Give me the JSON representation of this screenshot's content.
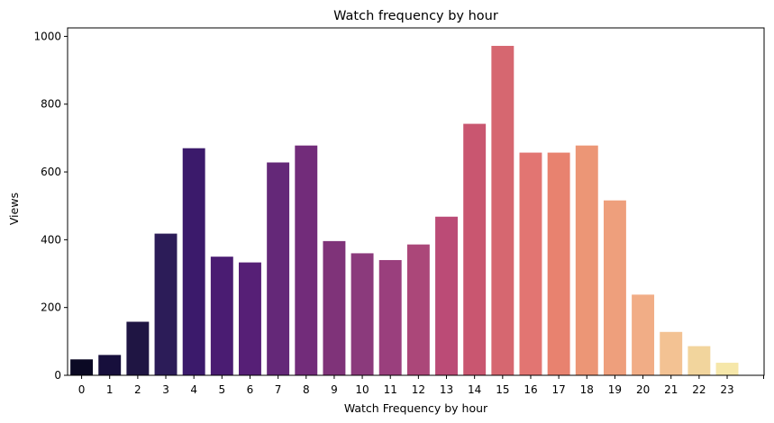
{
  "chart_data": {
    "type": "bar",
    "title": "Watch frequency by hour",
    "xlabel": "Watch Frequency by hour",
    "ylabel": "Views",
    "categories": [
      "0",
      "1",
      "2",
      "3",
      "4",
      "5",
      "6",
      "7",
      "8",
      "9",
      "10",
      "11",
      "12",
      "13",
      "14",
      "15",
      "16",
      "17",
      "18",
      "19",
      "20",
      "21",
      "22",
      "23"
    ],
    "values": [
      47,
      60,
      158,
      418,
      670,
      350,
      333,
      628,
      678,
      396,
      360,
      340,
      386,
      468,
      742,
      972,
      657,
      657,
      678,
      516,
      238,
      128,
      86,
      37
    ],
    "ylim": [
      0,
      1025
    ],
    "yticks": [
      0,
      200,
      400,
      600,
      800,
      1000
    ],
    "grid": false,
    "colors": [
      "#0b0924",
      "#170f3c",
      "#1f1543",
      "#2c1c58",
      "#3b1a6b",
      "#4a1c72",
      "#561f76",
      "#642878",
      "#722c7a",
      "#7f3379",
      "#8b3a7c",
      "#9a3f7d",
      "#ab4779",
      "#bb4b76",
      "#c95670",
      "#d66770",
      "#e27572",
      "#e8826f",
      "#ec9676",
      "#ee9f7c",
      "#f1ad86",
      "#f3c293",
      "#f2d59d",
      "#f6e7a9"
    ]
  }
}
